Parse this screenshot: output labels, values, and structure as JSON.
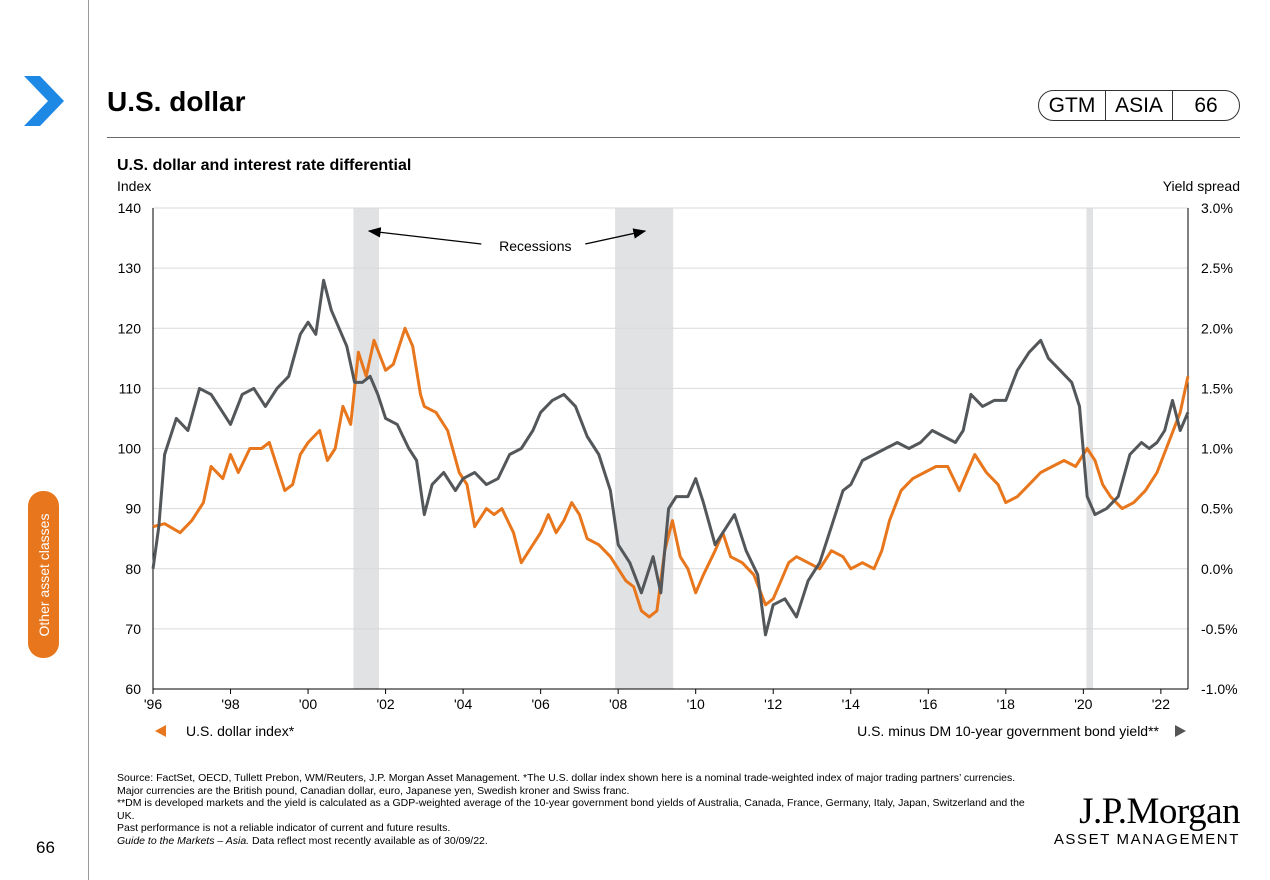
{
  "page": {
    "title": "U.S. dollar",
    "badge": [
      "GTM",
      "ASIA",
      "66"
    ],
    "section_tab": "Other asset classes",
    "page_number": "66",
    "accent": "#E8761C",
    "icon": "chevron-right-icon"
  },
  "chart_data": {
    "type": "line",
    "title": "U.S. dollar and interest rate differential",
    "ylabel": "Index",
    "y2label": "Yield spread",
    "ylim": [
      60,
      140
    ],
    "y2lim": [
      -1.0,
      3.0
    ],
    "yticks": [
      "140",
      "130",
      "120",
      "110",
      "100",
      "90",
      "80",
      "70",
      "60"
    ],
    "y2ticks": [
      "3.0%",
      "2.5%",
      "2.0%",
      "1.5%",
      "1.0%",
      "0.5%",
      "0.0%",
      "-0.5%",
      "-1.0%"
    ],
    "xlim": [
      1996,
      2022.7
    ],
    "xticks": [
      "'96",
      "'98",
      "'00",
      "'02",
      "'04",
      "'06",
      "'08",
      "'10",
      "'12",
      "'14",
      "'16",
      "'18",
      "'20",
      "'22"
    ],
    "grid": true,
    "annotation": "Recessions",
    "recessions": [
      [
        2001.17,
        2001.83
      ],
      [
        2007.92,
        2009.42
      ],
      [
        2020.08,
        2020.25
      ]
    ],
    "series": [
      {
        "name": "U.S. dollar index*",
        "axis": "left",
        "color": "#E8761C",
        "points": [
          [
            1996.0,
            87
          ],
          [
            1996.3,
            87.5
          ],
          [
            1996.7,
            86
          ],
          [
            1997.0,
            88
          ],
          [
            1997.3,
            91
          ],
          [
            1997.5,
            97
          ],
          [
            1997.8,
            95
          ],
          [
            1998.0,
            99
          ],
          [
            1998.2,
            96
          ],
          [
            1998.5,
            100
          ],
          [
            1998.8,
            100
          ],
          [
            1999.0,
            101
          ],
          [
            1999.2,
            97
          ],
          [
            1999.4,
            93
          ],
          [
            1999.6,
            94
          ],
          [
            1999.8,
            99
          ],
          [
            2000.0,
            101
          ],
          [
            2000.3,
            103
          ],
          [
            2000.5,
            98
          ],
          [
            2000.7,
            100
          ],
          [
            2000.9,
            107
          ],
          [
            2001.1,
            104
          ],
          [
            2001.3,
            116
          ],
          [
            2001.5,
            112
          ],
          [
            2001.7,
            118
          ],
          [
            2002.0,
            113
          ],
          [
            2002.2,
            114
          ],
          [
            2002.5,
            120
          ],
          [
            2002.7,
            117
          ],
          [
            2002.9,
            109
          ],
          [
            2003.0,
            107
          ],
          [
            2003.3,
            106
          ],
          [
            2003.6,
            103
          ],
          [
            2003.9,
            96
          ],
          [
            2004.1,
            94
          ],
          [
            2004.3,
            87
          ],
          [
            2004.6,
            90
          ],
          [
            2004.8,
            89
          ],
          [
            2005.0,
            90
          ],
          [
            2005.3,
            86
          ],
          [
            2005.5,
            81
          ],
          [
            2005.8,
            84
          ],
          [
            2006.0,
            86
          ],
          [
            2006.2,
            89
          ],
          [
            2006.4,
            86
          ],
          [
            2006.6,
            88
          ],
          [
            2006.8,
            91
          ],
          [
            2007.0,
            89
          ],
          [
            2007.2,
            85
          ],
          [
            2007.5,
            84
          ],
          [
            2007.8,
            82
          ],
          [
            2008.0,
            80
          ],
          [
            2008.2,
            78
          ],
          [
            2008.4,
            77
          ],
          [
            2008.6,
            73
          ],
          [
            2008.8,
            72
          ],
          [
            2009.0,
            73
          ],
          [
            2009.2,
            83
          ],
          [
            2009.4,
            88
          ],
          [
            2009.6,
            82
          ],
          [
            2009.8,
            80
          ],
          [
            2010.0,
            76
          ],
          [
            2010.2,
            79
          ],
          [
            2010.5,
            83
          ],
          [
            2010.7,
            86
          ],
          [
            2010.9,
            82
          ],
          [
            2011.2,
            81
          ],
          [
            2011.5,
            79
          ],
          [
            2011.8,
            74
          ],
          [
            2012.0,
            75
          ],
          [
            2012.2,
            78
          ],
          [
            2012.4,
            81
          ],
          [
            2012.6,
            82
          ],
          [
            2012.9,
            81
          ],
          [
            2013.2,
            80
          ],
          [
            2013.5,
            83
          ],
          [
            2013.8,
            82
          ],
          [
            2014.0,
            80
          ],
          [
            2014.3,
            81
          ],
          [
            2014.6,
            80
          ],
          [
            2014.8,
            83
          ],
          [
            2015.0,
            88
          ],
          [
            2015.3,
            93
          ],
          [
            2015.6,
            95
          ],
          [
            2015.9,
            96
          ],
          [
            2016.2,
            97
          ],
          [
            2016.5,
            97
          ],
          [
            2016.8,
            93
          ],
          [
            2017.0,
            96
          ],
          [
            2017.2,
            99
          ],
          [
            2017.5,
            96
          ],
          [
            2017.8,
            94
          ],
          [
            2018.0,
            91
          ],
          [
            2018.3,
            92
          ],
          [
            2018.6,
            94
          ],
          [
            2018.9,
            96
          ],
          [
            2019.2,
            97
          ],
          [
            2019.5,
            98
          ],
          [
            2019.8,
            97
          ],
          [
            2020.1,
            100
          ],
          [
            2020.3,
            98
          ],
          [
            2020.5,
            94
          ],
          [
            2020.7,
            92
          ],
          [
            2021.0,
            90
          ],
          [
            2021.3,
            91
          ],
          [
            2021.6,
            93
          ],
          [
            2021.9,
            96
          ],
          [
            2022.2,
            101
          ],
          [
            2022.5,
            106
          ],
          [
            2022.7,
            112
          ]
        ]
      },
      {
        "name": "U.S. minus DM 10-year government bond yield**",
        "axis": "right",
        "color": "#54575A",
        "points": [
          [
            1996.0,
            0.0
          ],
          [
            1996.15,
            0.35
          ],
          [
            1996.3,
            0.95
          ],
          [
            1996.6,
            1.25
          ],
          [
            1996.9,
            1.15
          ],
          [
            1997.2,
            1.5
          ],
          [
            1997.5,
            1.45
          ],
          [
            1997.8,
            1.3
          ],
          [
            1998.0,
            1.2
          ],
          [
            1998.3,
            1.45
          ],
          [
            1998.6,
            1.5
          ],
          [
            1998.9,
            1.35
          ],
          [
            1999.2,
            1.5
          ],
          [
            1999.5,
            1.6
          ],
          [
            1999.8,
            1.95
          ],
          [
            2000.0,
            2.05
          ],
          [
            2000.2,
            1.95
          ],
          [
            2000.4,
            2.4
          ],
          [
            2000.6,
            2.15
          ],
          [
            2000.8,
            2.0
          ],
          [
            2001.0,
            1.85
          ],
          [
            2001.2,
            1.55
          ],
          [
            2001.4,
            1.55
          ],
          [
            2001.6,
            1.6
          ],
          [
            2001.8,
            1.45
          ],
          [
            2002.0,
            1.25
          ],
          [
            2002.3,
            1.2
          ],
          [
            2002.6,
            1.0
          ],
          [
            2002.8,
            0.9
          ],
          [
            2003.0,
            0.45
          ],
          [
            2003.2,
            0.7
          ],
          [
            2003.5,
            0.8
          ],
          [
            2003.8,
            0.65
          ],
          [
            2004.0,
            0.75
          ],
          [
            2004.3,
            0.8
          ],
          [
            2004.6,
            0.7
          ],
          [
            2004.9,
            0.75
          ],
          [
            2005.2,
            0.95
          ],
          [
            2005.5,
            1.0
          ],
          [
            2005.8,
            1.15
          ],
          [
            2006.0,
            1.3
          ],
          [
            2006.3,
            1.4
          ],
          [
            2006.6,
            1.45
          ],
          [
            2006.9,
            1.35
          ],
          [
            2007.2,
            1.1
          ],
          [
            2007.5,
            0.95
          ],
          [
            2007.8,
            0.65
          ],
          [
            2008.0,
            0.2
          ],
          [
            2008.3,
            0.05
          ],
          [
            2008.6,
            -0.2
          ],
          [
            2008.9,
            0.1
          ],
          [
            2009.1,
            -0.2
          ],
          [
            2009.3,
            0.5
          ],
          [
            2009.5,
            0.6
          ],
          [
            2009.8,
            0.6
          ],
          [
            2010.0,
            0.75
          ],
          [
            2010.2,
            0.55
          ],
          [
            2010.5,
            0.2
          ],
          [
            2010.8,
            0.35
          ],
          [
            2011.0,
            0.45
          ],
          [
            2011.3,
            0.15
          ],
          [
            2011.6,
            -0.05
          ],
          [
            2011.8,
            -0.55
          ],
          [
            2012.0,
            -0.3
          ],
          [
            2012.3,
            -0.25
          ],
          [
            2012.6,
            -0.4
          ],
          [
            2012.9,
            -0.1
          ],
          [
            2013.2,
            0.05
          ],
          [
            2013.5,
            0.35
          ],
          [
            2013.8,
            0.65
          ],
          [
            2014.0,
            0.7
          ],
          [
            2014.3,
            0.9
          ],
          [
            2014.6,
            0.95
          ],
          [
            2014.9,
            1.0
          ],
          [
            2015.2,
            1.05
          ],
          [
            2015.5,
            1.0
          ],
          [
            2015.8,
            1.05
          ],
          [
            2016.1,
            1.15
          ],
          [
            2016.4,
            1.1
          ],
          [
            2016.7,
            1.05
          ],
          [
            2016.9,
            1.15
          ],
          [
            2017.1,
            1.45
          ],
          [
            2017.4,
            1.35
          ],
          [
            2017.7,
            1.4
          ],
          [
            2018.0,
            1.4
          ],
          [
            2018.3,
            1.65
          ],
          [
            2018.6,
            1.8
          ],
          [
            2018.9,
            1.9
          ],
          [
            2019.1,
            1.75
          ],
          [
            2019.4,
            1.65
          ],
          [
            2019.7,
            1.55
          ],
          [
            2019.9,
            1.35
          ],
          [
            2020.1,
            0.6
          ],
          [
            2020.3,
            0.45
          ],
          [
            2020.6,
            0.5
          ],
          [
            2020.9,
            0.6
          ],
          [
            2021.2,
            0.95
          ],
          [
            2021.5,
            1.05
          ],
          [
            2021.7,
            1.0
          ],
          [
            2021.9,
            1.05
          ],
          [
            2022.1,
            1.15
          ],
          [
            2022.3,
            1.4
          ],
          [
            2022.5,
            1.15
          ],
          [
            2022.7,
            1.3
          ]
        ]
      }
    ]
  },
  "footer": {
    "source_lines": [
      "Source: FactSet, OECD, Tullett Prebon, WM/Reuters, J.P. Morgan Asset Management. *The U.S. dollar index shown here is a nominal trade-weighted index of major trading partners’ currencies. Major currencies are the British pound, Canadian dollar, euro, Japanese yen, Swedish kroner and Swiss franc.",
      "**DM is developed markets and the yield is calculated as a GDP-weighted average of the 10-year government bond yields of Australia, Canada, France, Germany, Italy, Japan, Switzerland and the UK.",
      "Past performance is not a reliable indicator of current and future results."
    ],
    "guide_italic": "Guide to the Markets – Asia.",
    "guide_rest": " Data reflect most recently available as of 30/09/22.",
    "logo_name": "J.P.Morgan",
    "logo_sub": "ASSET MANAGEMENT"
  }
}
